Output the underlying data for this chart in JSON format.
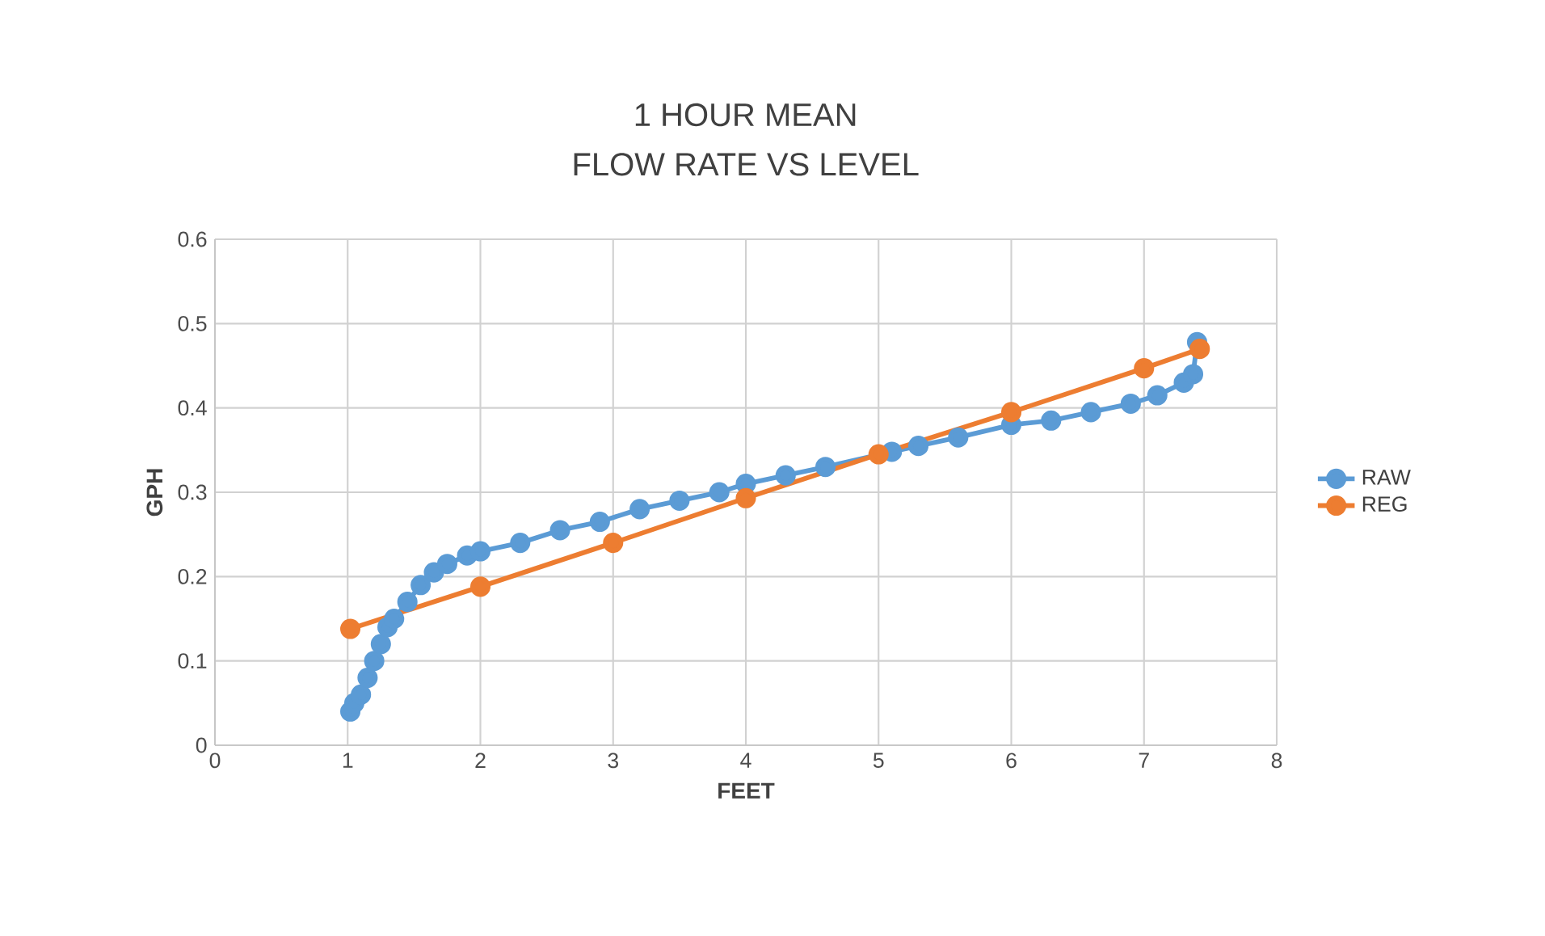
{
  "chart_data": {
    "type": "line",
    "title": "1 HOUR MEAN",
    "subtitle": "FLOW RATE VS LEVEL",
    "xlabel": "FEET",
    "ylabel": "GPH",
    "xlim": [
      0,
      8
    ],
    "xticks": [
      0,
      1,
      2,
      3,
      4,
      5,
      6,
      7,
      8
    ],
    "ylim": [
      0,
      0.6
    ],
    "yticks": [
      0,
      0.1,
      0.2,
      0.3,
      0.4,
      0.5,
      0.6
    ],
    "grid": true,
    "legend": "right",
    "marker": "circle",
    "line_style": "solid",
    "series": [
      {
        "name": "RAW",
        "color": "#5b9bd5",
        "x": [
          1.02,
          1.05,
          1.1,
          1.15,
          1.2,
          1.25,
          1.3,
          1.35,
          1.45,
          1.55,
          1.65,
          1.75,
          1.9,
          2,
          2.3,
          2.6,
          2.9,
          3.2,
          3.5,
          3.8,
          4,
          4.3,
          4.6,
          5.1,
          5.3,
          5.6,
          6,
          6.3,
          6.6,
          6.9,
          7.1,
          7.3,
          7.37,
          7.4
        ],
        "values": [
          0.04,
          0.05,
          0.06,
          0.08,
          0.1,
          0.12,
          0.14,
          0.15,
          0.17,
          0.19,
          0.205,
          0.215,
          0.225,
          0.23,
          0.24,
          0.255,
          0.265,
          0.28,
          0.29,
          0.3,
          0.31,
          0.32,
          0.33,
          0.348,
          0.355,
          0.365,
          0.38,
          0.385,
          0.395,
          0.405,
          0.415,
          0.43,
          0.44,
          0.478
        ]
      },
      {
        "name": "REG",
        "color": "#ed7d31",
        "x": [
          1.02,
          2,
          3,
          4,
          5,
          6,
          7,
          7.42
        ],
        "values": [
          0.138,
          0.188,
          0.24,
          0.293,
          0.345,
          0.395,
          0.447,
          0.47
        ]
      }
    ]
  }
}
